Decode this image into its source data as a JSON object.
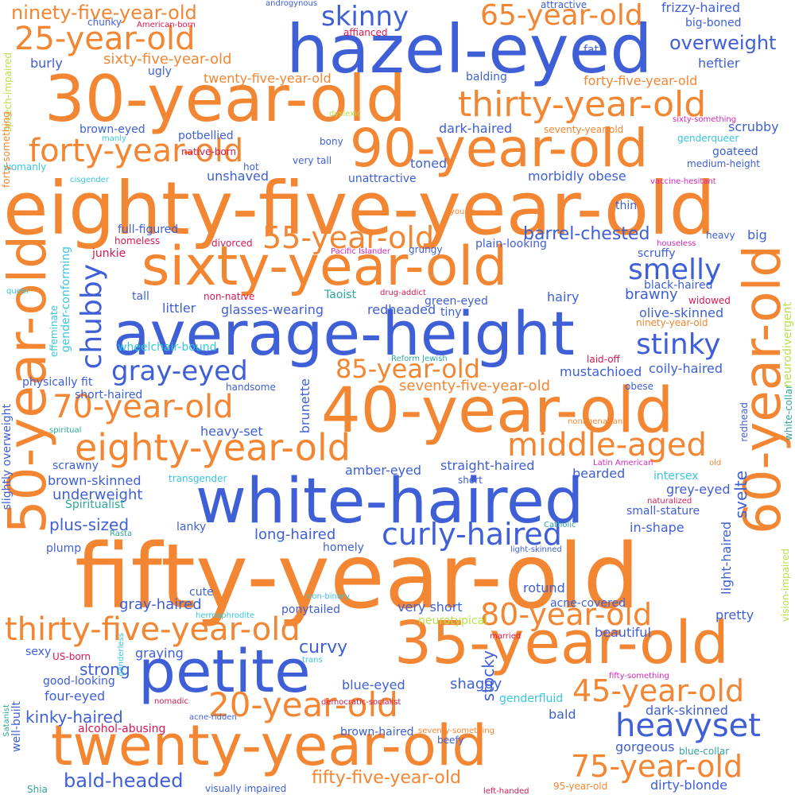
{
  "palette": {
    "orange": "#F28633",
    "blue": "#3F5FD6",
    "red": "#D8194F",
    "teal": "#2FA79A",
    "cyan": "#38C6DB",
    "lime": "#B8E04A",
    "magenta": "#D826B8"
  },
  "words": [
    {
      "text": "fifty-year-old",
      "color": "orange"
    },
    {
      "text": "eighty-five-year-old",
      "color": "orange"
    },
    {
      "text": "hazel-eyed",
      "color": "blue"
    },
    {
      "text": "30-year-old",
      "color": "orange"
    },
    {
      "text": "white-haired",
      "color": "blue"
    },
    {
      "text": "average-height",
      "color": "blue"
    },
    {
      "text": "40-year-old",
      "color": "orange"
    },
    {
      "text": "35-year-old",
      "color": "orange"
    },
    {
      "text": "petite",
      "color": "blue"
    },
    {
      "text": "twenty-year-old",
      "color": "orange"
    },
    {
      "text": "sixty-year-old",
      "color": "orange"
    },
    {
      "text": "90-year-old",
      "color": "orange"
    },
    {
      "text": "50-year-old",
      "color": "orange"
    },
    {
      "text": "60-year-old",
      "color": "orange"
    },
    {
      "text": "thirty-year-old",
      "color": "orange"
    },
    {
      "text": "eighty-year-old",
      "color": "orange"
    },
    {
      "text": "forty-year-old",
      "color": "orange"
    },
    {
      "text": "thirty-five-year-old",
      "color": "orange"
    },
    {
      "text": "20-year-old",
      "color": "orange"
    },
    {
      "text": "25-year-old",
      "color": "orange"
    },
    {
      "text": "70-year-old",
      "color": "orange"
    },
    {
      "text": "heavyset",
      "color": "blue"
    },
    {
      "text": "curly-haired",
      "color": "blue"
    },
    {
      "text": "middle-aged",
      "color": "orange"
    },
    {
      "text": "45-year-old",
      "color": "orange"
    },
    {
      "text": "80-year-old",
      "color": "orange"
    },
    {
      "text": "75-year-old",
      "color": "orange"
    },
    {
      "text": "55-year-old",
      "color": "orange"
    },
    {
      "text": "65-year-old",
      "color": "orange"
    },
    {
      "text": "85-year-old",
      "color": "orange"
    },
    {
      "text": "gray-eyed",
      "color": "blue"
    },
    {
      "text": "stinky",
      "color": "blue"
    },
    {
      "text": "smelly",
      "color": "blue"
    },
    {
      "text": "skinny",
      "color": "blue"
    },
    {
      "text": "chubby",
      "color": "blue"
    },
    {
      "text": "ninety-five-year-old",
      "color": "orange"
    },
    {
      "text": "overweight",
      "color": "blue"
    },
    {
      "text": "barrel-chested",
      "color": "blue"
    },
    {
      "text": "bald-headed",
      "color": "blue"
    },
    {
      "text": "fifty-five-year-old",
      "color": "orange"
    },
    {
      "text": "kinky-haired",
      "color": "blue"
    },
    {
      "text": "sixty-five-year-old",
      "color": "orange"
    },
    {
      "text": "twenty-five-year-old",
      "color": "orange"
    },
    {
      "text": "forty-five-year-old",
      "color": "orange"
    },
    {
      "text": "seventy-five-year-old",
      "color": "orange"
    },
    {
      "text": "plus-sized",
      "color": "blue"
    },
    {
      "text": "underweight",
      "color": "blue"
    },
    {
      "text": "long-haired",
      "color": "blue"
    },
    {
      "text": "curvy",
      "color": "blue"
    },
    {
      "text": "strong",
      "color": "blue"
    },
    {
      "text": "stocky",
      "color": "blue"
    },
    {
      "text": "frizzy-haired",
      "color": "blue"
    },
    {
      "text": "big-boned",
      "color": "blue"
    },
    {
      "text": "heftier",
      "color": "blue"
    },
    {
      "text": "scrubby",
      "color": "blue"
    },
    {
      "text": "brawny",
      "color": "blue"
    },
    {
      "text": "olive-skinned",
      "color": "blue"
    },
    {
      "text": "mustachioed",
      "color": "blue"
    },
    {
      "text": "coily-haired",
      "color": "blue"
    },
    {
      "text": "svelte",
      "color": "blue"
    },
    {
      "text": "grey-eyed",
      "color": "blue"
    },
    {
      "text": "in-shape",
      "color": "blue"
    },
    {
      "text": "rotund",
      "color": "blue"
    },
    {
      "text": "pretty",
      "color": "blue"
    },
    {
      "text": "beautiful",
      "color": "blue"
    },
    {
      "text": "shaggy",
      "color": "blue"
    },
    {
      "text": "blue-eyed",
      "color": "blue"
    },
    {
      "text": "dark-skinned",
      "color": "blue"
    },
    {
      "text": "bald",
      "color": "blue"
    },
    {
      "text": "gorgeous",
      "color": "blue"
    },
    {
      "text": "dirty-blonde",
      "color": "blue"
    },
    {
      "text": "gray-haired",
      "color": "blue"
    },
    {
      "text": "graying",
      "color": "blue"
    },
    {
      "text": "four-eyed",
      "color": "blue"
    },
    {
      "text": "good-looking",
      "color": "blue"
    },
    {
      "text": "sexy",
      "color": "blue"
    },
    {
      "text": "heavy-set",
      "color": "blue"
    },
    {
      "text": "scrawny",
      "color": "blue"
    },
    {
      "text": "brown-skinned",
      "color": "blue"
    },
    {
      "text": "lanky",
      "color": "blue"
    },
    {
      "text": "plump",
      "color": "blue"
    },
    {
      "text": "homely",
      "color": "blue"
    },
    {
      "text": "cute",
      "color": "blue"
    },
    {
      "text": "ponytailed",
      "color": "blue"
    },
    {
      "text": "very short",
      "color": "blue"
    },
    {
      "text": "acne-covered",
      "color": "blue"
    },
    {
      "text": "small-stature",
      "color": "blue"
    },
    {
      "text": "straight-haired",
      "color": "blue"
    },
    {
      "text": "amber-eyed",
      "color": "blue"
    },
    {
      "text": "bearded",
      "color": "blue"
    },
    {
      "text": "short",
      "color": "blue"
    },
    {
      "text": "brunette",
      "color": "blue"
    },
    {
      "text": "handsome",
      "color": "blue"
    },
    {
      "text": "physically fit",
      "color": "blue"
    },
    {
      "text": "short-haired",
      "color": "blue"
    },
    {
      "text": "glasses-wearing",
      "color": "blue"
    },
    {
      "text": "redheaded",
      "color": "blue"
    },
    {
      "text": "littler",
      "color": "blue"
    },
    {
      "text": "tall",
      "color": "blue"
    },
    {
      "text": "green-eyed",
      "color": "blue"
    },
    {
      "text": "tiny",
      "color": "blue"
    },
    {
      "text": "hairy",
      "color": "blue"
    },
    {
      "text": "black-haired",
      "color": "blue"
    },
    {
      "text": "scruffy",
      "color": "blue"
    },
    {
      "text": "big",
      "color": "blue"
    },
    {
      "text": "heavy",
      "color": "blue"
    },
    {
      "text": "thin",
      "color": "blue"
    },
    {
      "text": "goateed",
      "color": "blue"
    },
    {
      "text": "medium-height",
      "color": "blue"
    },
    {
      "text": "morbidly obese",
      "color": "blue"
    },
    {
      "text": "toned",
      "color": "blue"
    },
    {
      "text": "unattractive",
      "color": "blue"
    },
    {
      "text": "very tall",
      "color": "blue"
    },
    {
      "text": "bony",
      "color": "blue"
    },
    {
      "text": "dark-haired",
      "color": "blue"
    },
    {
      "text": "balding",
      "color": "blue"
    },
    {
      "text": "fat",
      "color": "blue"
    },
    {
      "text": "attractive",
      "color": "blue"
    },
    {
      "text": "ugly",
      "color": "blue"
    },
    {
      "text": "burly",
      "color": "blue"
    },
    {
      "text": "chunky",
      "color": "blue"
    },
    {
      "text": "brown-eyed",
      "color": "blue"
    },
    {
      "text": "potbellied",
      "color": "blue"
    },
    {
      "text": "unshaved",
      "color": "blue"
    },
    {
      "text": "hot",
      "color": "blue"
    },
    {
      "text": "full-figured",
      "color": "blue"
    },
    {
      "text": "grungy",
      "color": "blue"
    },
    {
      "text": "plain-looking",
      "color": "blue"
    },
    {
      "text": "light-haired",
      "color": "blue"
    },
    {
      "text": "obese",
      "color": "blue"
    },
    {
      "text": "brown-haired",
      "color": "blue"
    },
    {
      "text": "beefy",
      "color": "blue"
    },
    {
      "text": "well-built",
      "color": "blue"
    },
    {
      "text": "slightly overweight",
      "color": "blue"
    },
    {
      "text": "visually impaired",
      "color": "blue"
    },
    {
      "text": "redhead",
      "color": "blue"
    },
    {
      "text": "white-collar",
      "color": "teal"
    },
    {
      "text": "Taoist",
      "color": "teal"
    },
    {
      "text": "Spiritualist",
      "color": "teal"
    },
    {
      "text": "blue-collar",
      "color": "teal"
    },
    {
      "text": "Shia",
      "color": "teal"
    },
    {
      "text": "Satanist",
      "color": "teal"
    },
    {
      "text": "spiritual",
      "color": "teal"
    },
    {
      "text": "Reform Jewish",
      "color": "teal"
    },
    {
      "text": "Rasta",
      "color": "teal"
    },
    {
      "text": "Catholic",
      "color": "teal"
    },
    {
      "text": "acne-ridden",
      "color": "blue"
    },
    {
      "text": "light-skinned",
      "color": "blue"
    },
    {
      "text": "genderqueer",
      "color": "cyan"
    },
    {
      "text": "wheelchair-bound",
      "color": "cyan"
    },
    {
      "text": "womanly",
      "color": "cyan"
    },
    {
      "text": "transgender",
      "color": "cyan"
    },
    {
      "text": "intersex",
      "color": "cyan"
    },
    {
      "text": "genderfluid",
      "color": "cyan"
    },
    {
      "text": "gender-conforming",
      "color": "cyan"
    },
    {
      "text": "effeminate",
      "color": "cyan"
    },
    {
      "text": "queer",
      "color": "cyan"
    },
    {
      "text": "cisgender",
      "color": "cyan"
    },
    {
      "text": "manly",
      "color": "cyan"
    },
    {
      "text": "non-binary",
      "color": "cyan"
    },
    {
      "text": "hermaphrodite",
      "color": "cyan"
    },
    {
      "text": "genderless",
      "color": "cyan"
    },
    {
      "text": "trans",
      "color": "cyan"
    },
    {
      "text": "androgynous",
      "color": "blue"
    },
    {
      "text": "neurodivergent",
      "color": "lime"
    },
    {
      "text": "vision-impaired",
      "color": "lime"
    },
    {
      "text": "neurotypical",
      "color": "lime"
    },
    {
      "text": "speech-impaired",
      "color": "lime"
    },
    {
      "text": "dyslexic",
      "color": "lime"
    },
    {
      "text": "homeless",
      "color": "red"
    },
    {
      "text": "junkie",
      "color": "red"
    },
    {
      "text": "divorced",
      "color": "red"
    },
    {
      "text": "non-native",
      "color": "red"
    },
    {
      "text": "native-born",
      "color": "red"
    },
    {
      "text": "affianced",
      "color": "red"
    },
    {
      "text": "American-born",
      "color": "red"
    },
    {
      "text": "widowed",
      "color": "red"
    },
    {
      "text": "laid-off",
      "color": "red"
    },
    {
      "text": "naturalized",
      "color": "red"
    },
    {
      "text": "US-born",
      "color": "red"
    },
    {
      "text": "alcohol-abusing",
      "color": "red"
    },
    {
      "text": "nomadic",
      "color": "red"
    },
    {
      "text": "democratic-socialist",
      "color": "red"
    },
    {
      "text": "married",
      "color": "red"
    },
    {
      "text": "left-handed",
      "color": "red"
    },
    {
      "text": "drug-addict",
      "color": "red"
    },
    {
      "text": "houseless",
      "color": "magenta"
    },
    {
      "text": "vaccine-hesitant",
      "color": "magenta"
    },
    {
      "text": "Pacific Islander",
      "color": "magenta"
    },
    {
      "text": "Latin American",
      "color": "magenta"
    },
    {
      "text": "sixty-something",
      "color": "magenta"
    },
    {
      "text": "fifty-something",
      "color": "magenta"
    },
    {
      "text": "forty-something",
      "color": "orange"
    },
    {
      "text": "seventy-year-old",
      "color": "orange"
    },
    {
      "text": "ninety-year-old",
      "color": "orange"
    },
    {
      "text": "nonagenarian",
      "color": "orange"
    },
    {
      "text": "seventy-something",
      "color": "orange"
    },
    {
      "text": "95-year-old",
      "color": "orange"
    },
    {
      "text": "young",
      "color": "orange"
    },
    {
      "text": "old",
      "color": "orange"
    }
  ]
}
